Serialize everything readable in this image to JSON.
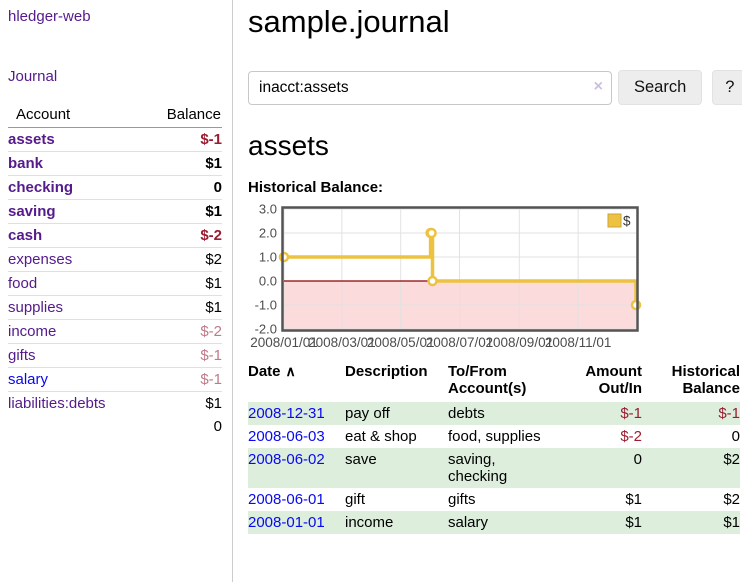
{
  "sidebar": {
    "brand": "hledger-web",
    "nav_journal": "Journal",
    "table": {
      "headers": [
        "Account",
        "Balance"
      ],
      "rows": [
        {
          "name": "assets",
          "depth": 1,
          "bold": true,
          "balance": "$-1",
          "neg": "strong"
        },
        {
          "name": "bank",
          "depth": 2,
          "bold": true,
          "balance": "$1",
          "neg": "none"
        },
        {
          "name": "checking",
          "depth": 3,
          "bold": true,
          "balance": "0",
          "neg": "none"
        },
        {
          "name": "saving",
          "depth": 3,
          "bold": true,
          "balance": "$1",
          "neg": "none"
        },
        {
          "name": "cash",
          "depth": 2,
          "bold": true,
          "balance": "$-2",
          "neg": "strong"
        },
        {
          "name": "expenses",
          "depth": 1,
          "bold": false,
          "balance": "$2",
          "neg": "none"
        },
        {
          "name": "food",
          "depth": 2,
          "bold": false,
          "balance": "$1",
          "neg": "none"
        },
        {
          "name": "supplies",
          "depth": 2,
          "bold": false,
          "balance": "$1",
          "neg": "none"
        },
        {
          "name": "income",
          "depth": 1,
          "bold": false,
          "balance": "$-2",
          "neg": "soft"
        },
        {
          "name": "gifts",
          "depth": 2,
          "bold": false,
          "balance": "$-1",
          "neg": "soft"
        },
        {
          "name": "salary",
          "depth": 2,
          "bold": false,
          "balance": "$-1",
          "neg": "soft",
          "link_color": "blue"
        },
        {
          "name": "liabilities:debts",
          "depth": 1,
          "bold": false,
          "balance": "$1",
          "neg": "none"
        }
      ],
      "total": "0"
    }
  },
  "header": {
    "title": "sample.journal"
  },
  "search": {
    "value": "inacct:assets",
    "clear_icon": "×",
    "button_label": "Search",
    "help_label": "?"
  },
  "account_page": {
    "title": "assets",
    "chart_label": "Historical Balance:"
  },
  "chart_data": {
    "type": "line",
    "step": true,
    "title": "Historical Balance:",
    "series": [
      {
        "name": "$",
        "points": [
          [
            "2008-01-01",
            1
          ],
          [
            "2008-06-01",
            2
          ],
          [
            "2008-06-02",
            2
          ],
          [
            "2008-06-03",
            0
          ],
          [
            "2008-12-31",
            -1
          ]
        ]
      }
    ],
    "xlim": [
      "2008-01-01",
      "2008-12-31"
    ],
    "ylim": [
      -2,
      3
    ],
    "x_ticks": [
      "2008/01/01",
      "2008/03/01",
      "2008/05/01",
      "2008/07/01",
      "2008/09/01",
      "2008/11/01"
    ],
    "y_ticks": [
      3.0,
      2.0,
      1.0,
      0.0,
      -1.0,
      -2.0
    ],
    "legend_position": "top-right",
    "line_color": "#edc240",
    "legend_box_border": "#c9a63a",
    "negative_fill": "#fbdbdb",
    "zero_line_color": "#8b0000",
    "grid_color": "#e2e2e2",
    "border_color": "#545454",
    "axis_text_color": "#4d4d4d"
  },
  "register": {
    "headers": [
      "Date",
      "Description",
      "To/From\nAccount(s)",
      "Amount\nOut/In",
      "Historical\nBalance"
    ],
    "sort_indicator": "∧",
    "rows": [
      {
        "date": "2008-12-31",
        "description": "pay off",
        "accounts": "debts",
        "amount": "$-1",
        "amount_neg": true,
        "balance": "$-1",
        "balance_neg": true
      },
      {
        "date": "2008-06-03",
        "description": "eat & shop",
        "accounts": "food, supplies",
        "amount": "$-2",
        "amount_neg": true,
        "balance": "0",
        "balance_neg": false
      },
      {
        "date": "2008-06-02",
        "description": "save",
        "accounts": "saving,\nchecking",
        "amount": "0",
        "amount_neg": false,
        "balance": "$2",
        "balance_neg": false
      },
      {
        "date": "2008-06-01",
        "description": "gift",
        "accounts": "gifts",
        "amount": "$1",
        "amount_neg": false,
        "balance": "$2",
        "balance_neg": false
      },
      {
        "date": "2008-01-01",
        "description": "income",
        "accounts": "salary",
        "amount": "$1",
        "amount_neg": false,
        "balance": "$1",
        "balance_neg": false
      }
    ]
  }
}
